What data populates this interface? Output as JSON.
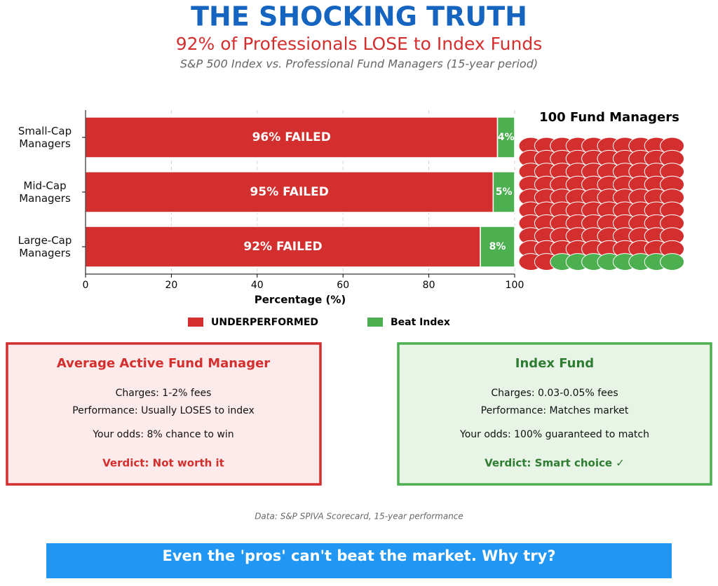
{
  "header": {
    "title": "THE SHOCKING TRUTH",
    "subtitle": "92% of Professionals LOSE to Index Funds",
    "note": "S&P 500 Index vs. Professional Fund Managers (15-year period)"
  },
  "chart_data": [
    {
      "type": "hbar_stacked",
      "categories": [
        "Small-Cap Managers",
        "Mid-Cap Managers",
        "Large-Cap Managers"
      ],
      "series": [
        {
          "name": "UNDERPERFORMED",
          "color": "#d32f2f",
          "values": [
            96,
            95,
            92
          ],
          "value_labels": [
            "96% FAILED",
            "95% FAILED",
            "92% FAILED"
          ]
        },
        {
          "name": "Beat Index",
          "color": "#4caf50",
          "values": [
            4,
            5,
            8
          ],
          "value_labels": [
            "4%",
            "5%",
            "8%"
          ]
        }
      ],
      "xlim": [
        0,
        100
      ],
      "xticks": [
        0,
        20,
        40,
        60,
        80,
        100
      ],
      "xlabel": "Percentage (%)",
      "grid": true
    },
    {
      "type": "waffle",
      "title": "100 Fund Managers",
      "values": [
        92,
        8
      ],
      "colors": [
        "#d32f2f",
        "#4caf50"
      ],
      "columns": 10
    }
  ],
  "cards": [
    {
      "title": "Average Active Fund Manager",
      "lines": [
        "Charges: 1-2% fees",
        "Performance: Usually LOSES to index",
        "Your odds: 8% chance to win"
      ],
      "verdict": "Verdict: Not worth it"
    },
    {
      "title": "Index Fund",
      "lines": [
        "Charges: 0.03-0.05% fees",
        "Performance: Matches market",
        "Your odds: 100% guaranteed to match"
      ],
      "verdict": "Verdict: Smart choice ✓"
    }
  ],
  "footnote": "Data: S&P SPIVA Scorecard, 15-year performance",
  "banner": "Even the 'pros' can't beat the market. Why try?"
}
